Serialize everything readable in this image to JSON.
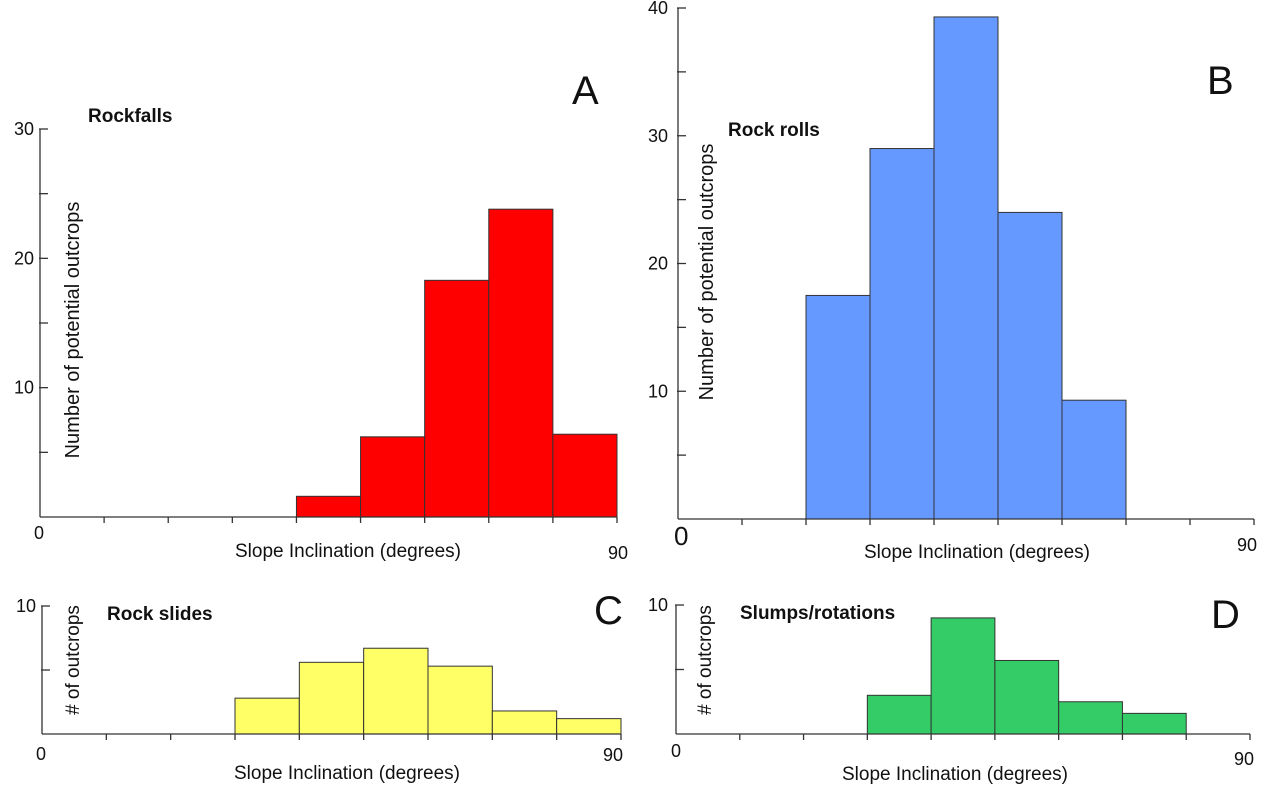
{
  "chart_data": [
    {
      "panel": "A",
      "type": "bar",
      "title": "Rockfalls",
      "xlabel": "Slope Inclination (degrees)",
      "ylabel": "Number of potential outcrops",
      "xlim": [
        0,
        90
      ],
      "ylim": [
        0,
        30
      ],
      "x_tick_labels": [
        "0",
        "90"
      ],
      "y_tick_labels": [
        "10",
        "20",
        "30"
      ],
      "bin_width": 10,
      "bins": [
        {
          "x0": 40,
          "x1": 50,
          "value": 1.6
        },
        {
          "x0": 50,
          "x1": 60,
          "value": 6.2
        },
        {
          "x0": 60,
          "x1": 70,
          "value": 18.3
        },
        {
          "x0": 70,
          "x1": 80,
          "value": 23.8
        },
        {
          "x0": 80,
          "x1": 90,
          "value": 6.4
        }
      ],
      "color": "#ff0000",
      "grid": false
    },
    {
      "panel": "B",
      "type": "bar",
      "title": "Rock rolls",
      "xlabel": "Slope Inclination (degrees)",
      "ylabel": "Number of potential outcrops",
      "xlim": [
        0,
        90
      ],
      "ylim": [
        0,
        40
      ],
      "x_tick_labels": [
        "0",
        "90"
      ],
      "y_tick_labels": [
        "10",
        "20",
        "30",
        "40"
      ],
      "bin_width": 10,
      "bins": [
        {
          "x0": 20,
          "x1": 30,
          "value": 17.5
        },
        {
          "x0": 30,
          "x1": 40,
          "value": 29.0
        },
        {
          "x0": 40,
          "x1": 50,
          "value": 39.3
        },
        {
          "x0": 50,
          "x1": 60,
          "value": 24.0
        },
        {
          "x0": 60,
          "x1": 70,
          "value": 9.3
        }
      ],
      "color": "#6699ff",
      "grid": false
    },
    {
      "panel": "C",
      "type": "bar",
      "title": "Rock slides",
      "xlabel": "Slope Inclination (degrees)",
      "ylabel": "# of outcrops",
      "xlim": [
        0,
        90
      ],
      "ylim": [
        0,
        10
      ],
      "x_tick_labels": [
        "0",
        "90"
      ],
      "y_tick_labels": [
        "10"
      ],
      "bin_width": 10,
      "bins": [
        {
          "x0": 30,
          "x1": 40,
          "value": 2.8
        },
        {
          "x0": 40,
          "x1": 50,
          "value": 5.6
        },
        {
          "x0": 50,
          "x1": 60,
          "value": 6.7
        },
        {
          "x0": 60,
          "x1": 70,
          "value": 5.3
        },
        {
          "x0": 70,
          "x1": 80,
          "value": 1.8
        },
        {
          "x0": 80,
          "x1": 90,
          "value": 1.2
        }
      ],
      "color": "#ffff66",
      "grid": false
    },
    {
      "panel": "D",
      "type": "bar",
      "title": "Slumps/rotations",
      "xlabel": "Slope Inclination (degrees)",
      "ylabel": "# of outcrops",
      "xlim": [
        0,
        90
      ],
      "ylim": [
        0,
        10
      ],
      "x_tick_labels": [
        "0",
        "90"
      ],
      "y_tick_labels": [
        "10"
      ],
      "bin_width": 10,
      "bins": [
        {
          "x0": 30,
          "x1": 40,
          "value": 3.0
        },
        {
          "x0": 40,
          "x1": 50,
          "value": 9.0
        },
        {
          "x0": 50,
          "x1": 60,
          "value": 5.7
        },
        {
          "x0": 60,
          "x1": 70,
          "value": 2.5
        },
        {
          "x0": 70,
          "x1": 80,
          "value": 1.6
        }
      ],
      "color": "#33cc66",
      "grid": false
    }
  ]
}
